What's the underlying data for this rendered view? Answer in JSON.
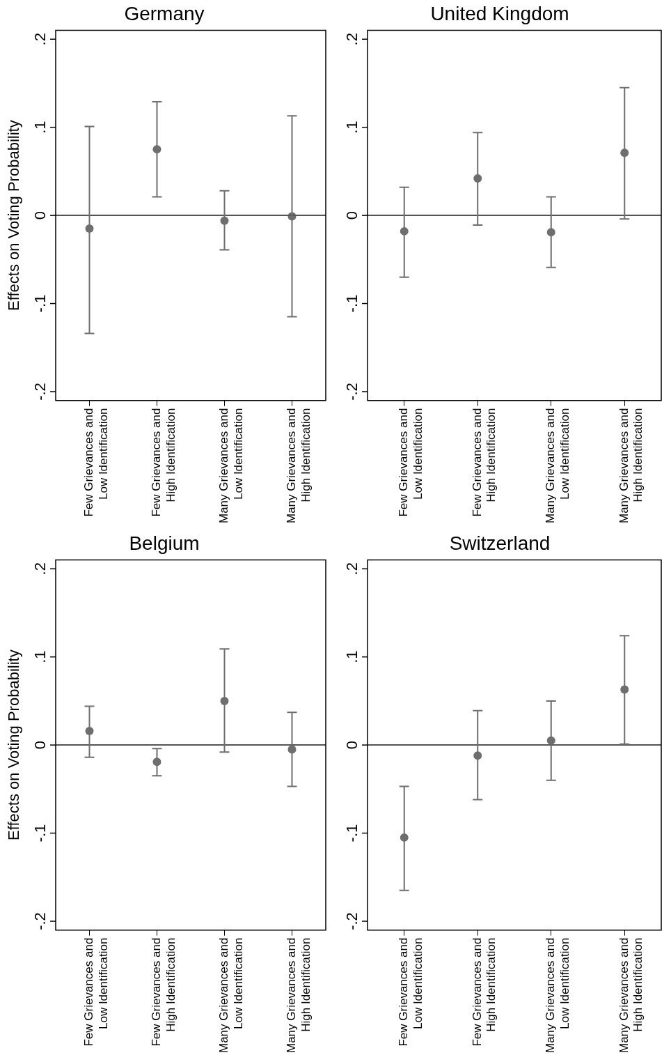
{
  "chart_data": [
    {
      "type": "scatter",
      "title": "Germany",
      "ylabel": "Effects on Voting Probability",
      "categories": [
        "Few Grievances and Low Identification",
        "Few Grievances and High Identification",
        "Many Grievances and Low Identification",
        "Many Grievances and High Identification"
      ],
      "values": [
        -0.015,
        0.075,
        -0.006,
        -0.001
      ],
      "errors": [
        [
          -0.134,
          0.101
        ],
        [
          0.021,
          0.129
        ],
        [
          -0.039,
          0.028
        ],
        [
          -0.115,
          0.113
        ]
      ],
      "color": "#6e6e6e",
      "marker": "circle",
      "ylim": [
        -0.21,
        0.21
      ],
      "yticks": [
        {
          "value": -0.2,
          "label": "-.2"
        },
        {
          "value": -0.1,
          "label": "-.1"
        },
        {
          "value": 0,
          "label": "0"
        },
        {
          "value": 0.1,
          "label": ".1"
        },
        {
          "value": 0.2,
          "label": ".2"
        }
      ],
      "ref_lines": [
        {
          "axis": "y",
          "value": 0,
          "color": "#555555"
        }
      ],
      "grid": false,
      "legend": false
    },
    {
      "type": "scatter",
      "title": "United Kingdom",
      "categories": [
        "Few Grievances and Low Identification",
        "Few Grievances and High Identification",
        "Many Grievances and Low Identification",
        "Many Grievances and High Identification"
      ],
      "values": [
        -0.018,
        0.042,
        -0.019,
        0.071
      ],
      "errors": [
        [
          -0.07,
          0.032
        ],
        [
          -0.011,
          0.094
        ],
        [
          -0.059,
          0.021
        ],
        [
          -0.004,
          0.145
        ]
      ],
      "color": "#6e6e6e",
      "marker": "circle",
      "ylim": [
        -0.21,
        0.21
      ],
      "yticks": [
        {
          "value": -0.2,
          "label": "-.2"
        },
        {
          "value": -0.1,
          "label": "-.1"
        },
        {
          "value": 0,
          "label": "0"
        },
        {
          "value": 0.1,
          "label": ".1"
        },
        {
          "value": 0.2,
          "label": ".2"
        }
      ],
      "ref_lines": [
        {
          "axis": "y",
          "value": 0,
          "color": "#555555"
        }
      ],
      "grid": false,
      "legend": false
    },
    {
      "type": "scatter",
      "title": "Belgium",
      "ylabel": "Effects on Voting Probability",
      "categories": [
        "Few Grievances and Low Identification",
        "Few Grievances and High Identification",
        "Many Grievances and Low Identification",
        "Many Grievances and High Identification"
      ],
      "values": [
        0.016,
        -0.019,
        0.05,
        -0.005
      ],
      "errors": [
        [
          -0.014,
          0.044
        ],
        [
          -0.035,
          -0.004
        ],
        [
          -0.008,
          0.109
        ],
        [
          -0.047,
          0.037
        ]
      ],
      "color": "#6e6e6e",
      "marker": "circle",
      "ylim": [
        -0.21,
        0.21
      ],
      "yticks": [
        {
          "value": -0.2,
          "label": "-.2"
        },
        {
          "value": -0.1,
          "label": "-.1"
        },
        {
          "value": 0,
          "label": "0"
        },
        {
          "value": 0.1,
          "label": ".1"
        },
        {
          "value": 0.2,
          "label": ".2"
        }
      ],
      "ref_lines": [
        {
          "axis": "y",
          "value": 0,
          "color": "#555555"
        }
      ],
      "grid": false,
      "legend": false
    },
    {
      "type": "scatter",
      "title": "Switzerland",
      "categories": [
        "Few Grievances and Low Identification",
        "Few Grievances and High Identification",
        "Many Grievances and Low Identification",
        "Many Grievances and High Identification"
      ],
      "values": [
        -0.105,
        -0.012,
        0.005,
        0.063
      ],
      "errors": [
        [
          -0.165,
          -0.047
        ],
        [
          -0.062,
          0.039
        ],
        [
          -0.04,
          0.05
        ],
        [
          0.001,
          0.124
        ]
      ],
      "color": "#6e6e6e",
      "marker": "circle",
      "ylim": [
        -0.21,
        0.21
      ],
      "yticks": [
        {
          "value": -0.2,
          "label": "-.2"
        },
        {
          "value": -0.1,
          "label": "-.1"
        },
        {
          "value": 0,
          "label": "0"
        },
        {
          "value": 0.1,
          "label": ".1"
        },
        {
          "value": 0.2,
          "label": ".2"
        }
      ],
      "ref_lines": [
        {
          "axis": "y",
          "value": 0,
          "color": "#555555"
        }
      ],
      "grid": false,
      "legend": false
    }
  ]
}
